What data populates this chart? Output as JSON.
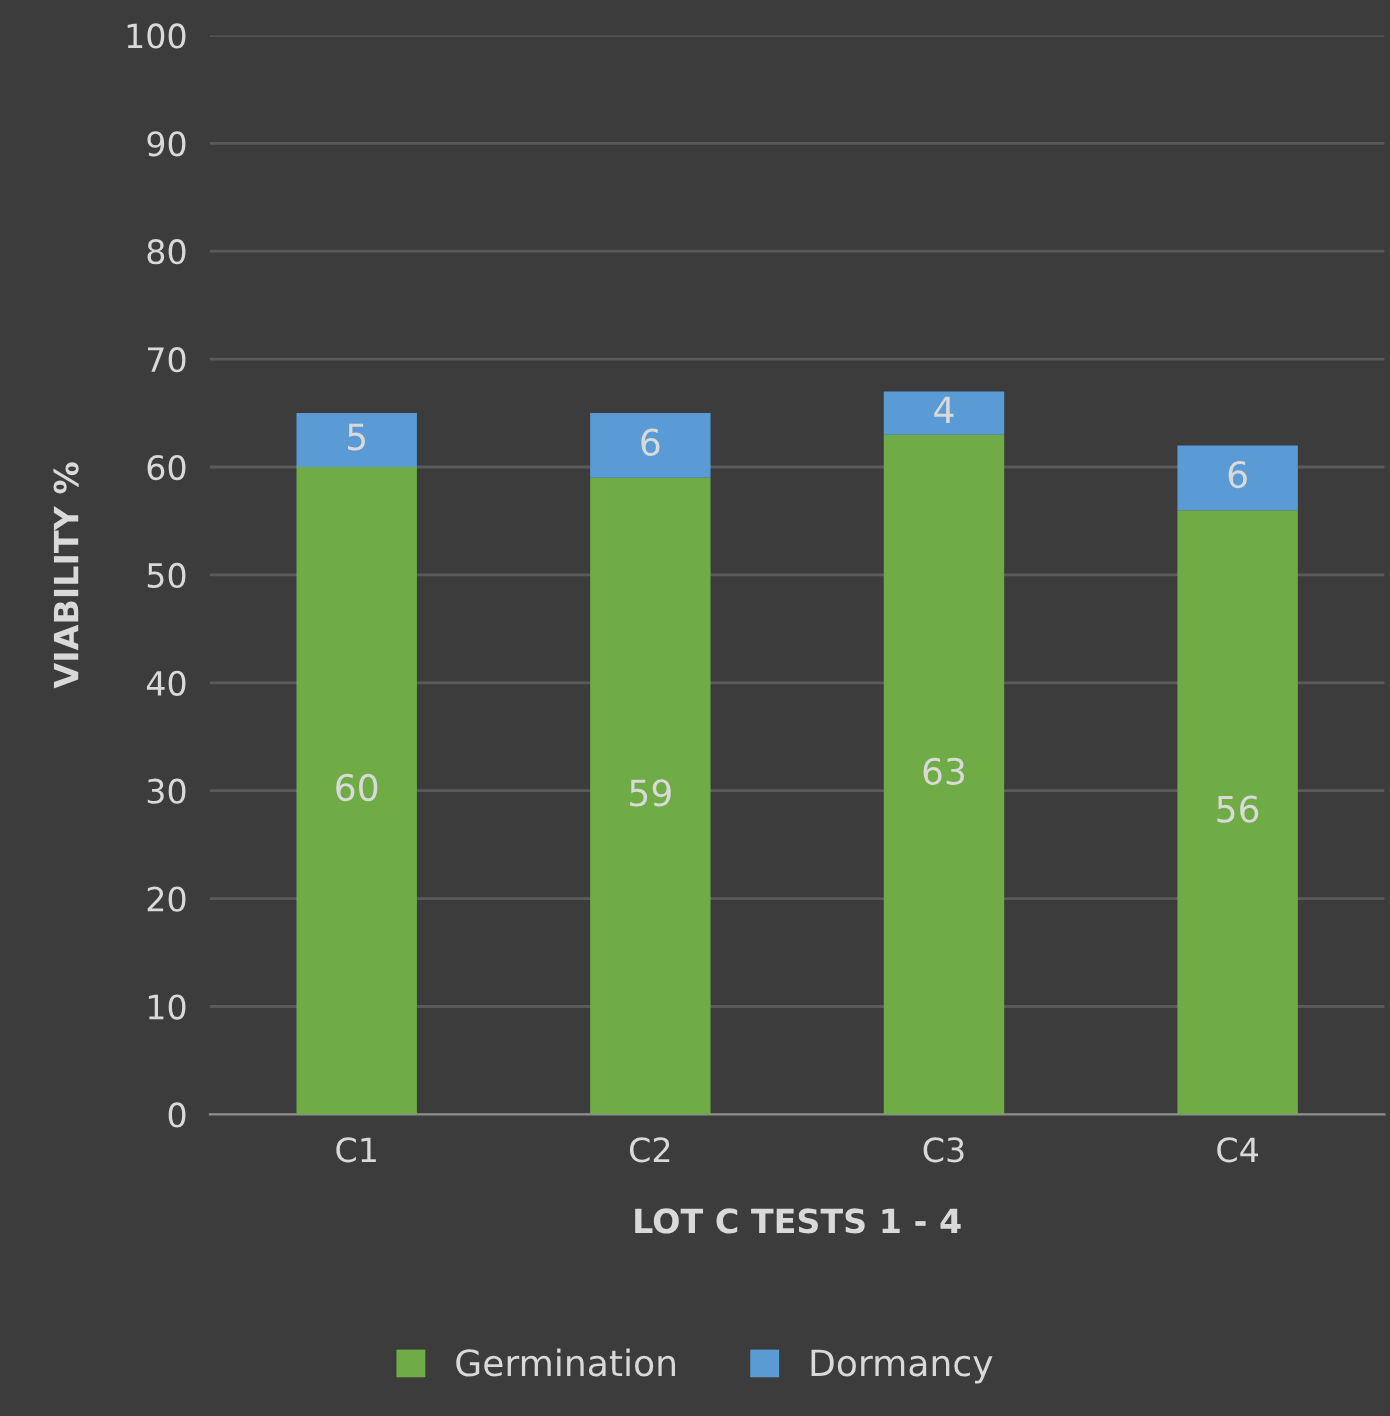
{
  "chart_data": {
    "type": "bar",
    "stacked": true,
    "xlabel": "LOT C TESTS 1 - 4",
    "ylabel": "VIABILITY %",
    "categories": [
      "C1",
      "C2",
      "C3",
      "C4"
    ],
    "series": [
      {
        "name": "Germination",
        "color": "#6fac46",
        "values": [
          60,
          59,
          63,
          56
        ]
      },
      {
        "name": "Dormancy",
        "color": "#5b9bd5",
        "values": [
          5,
          6,
          4,
          6
        ]
      }
    ],
    "ylim": [
      0,
      100
    ],
    "yticks": [
      0,
      10,
      20,
      30,
      40,
      50,
      60,
      70,
      80,
      90,
      100
    ],
    "grid": "y",
    "legend": "bottom",
    "data_labels": true
  }
}
